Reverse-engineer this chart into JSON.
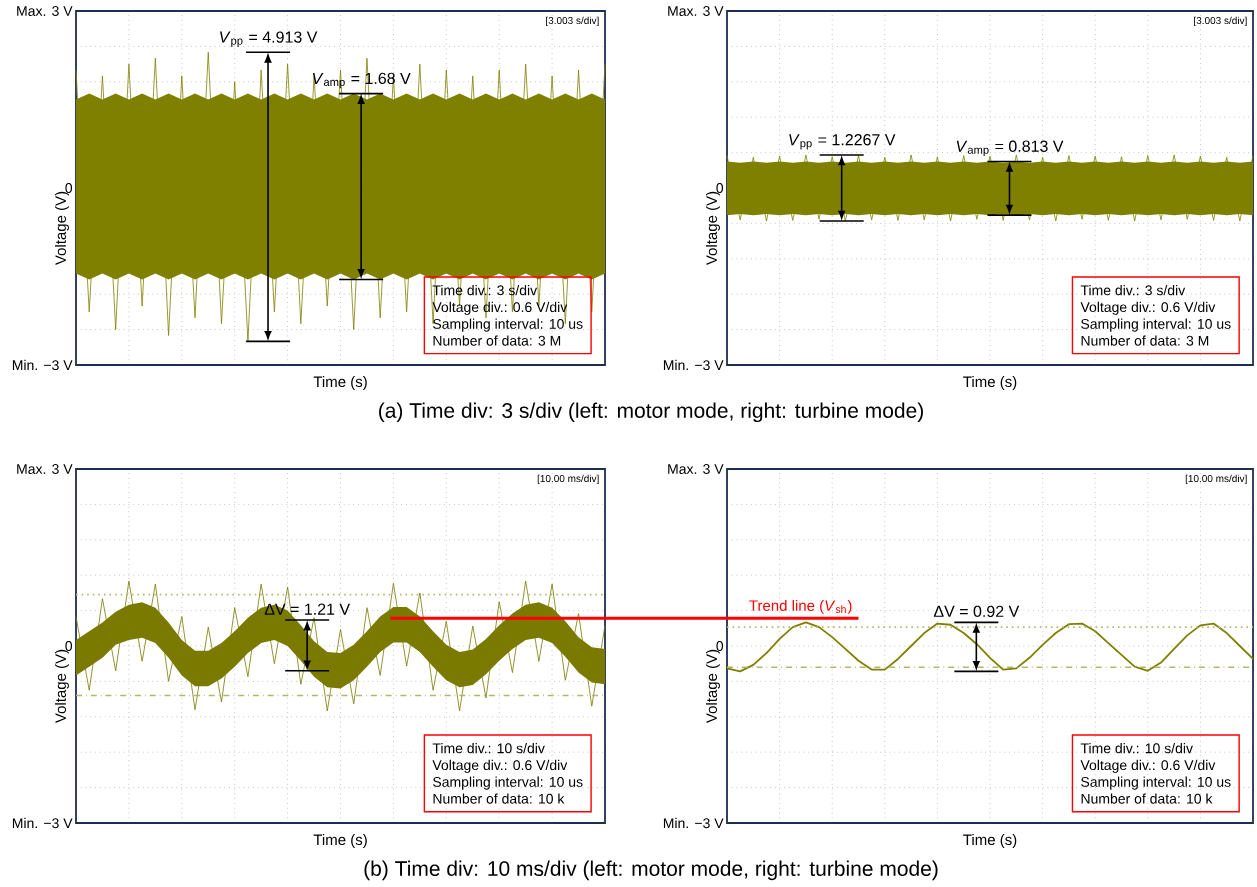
{
  "chart_data": [
    {
      "type": "line",
      "xlabel": "Time (s)",
      "ylabel": "Voltage (V)",
      "ylim": [
        -3,
        3
      ],
      "tick_labels": "y",
      "grid": true,
      "yticks": [
        {
          "value": -3,
          "label": "Min. −3 V"
        },
        {
          "value": -2.4,
          "label": null
        },
        {
          "value": -1.8,
          "label": null
        },
        {
          "value": -1.2,
          "label": null
        },
        {
          "value": -0.6,
          "label": null
        },
        {
          "value": 0,
          "label": "0"
        },
        {
          "value": 0.6,
          "label": null
        },
        {
          "value": 1.2,
          "label": null
        },
        {
          "value": 1.8,
          "label": null
        },
        {
          "value": 2.4,
          "label": null
        },
        {
          "value": 3,
          "label": "Max. 3 V"
        }
      ],
      "categories": [
        null,
        null,
        null,
        null,
        null,
        null,
        null,
        null,
        null,
        null,
        null,
        null,
        null,
        null,
        null,
        null,
        null,
        null,
        null,
        null,
        null,
        null,
        null,
        null,
        null,
        null,
        null,
        null,
        null,
        null,
        null,
        null,
        null,
        null,
        null,
        null,
        null,
        null,
        null,
        null,
        null
      ],
      "series": [
        {
          "color": "#808000",
          "values": [
            2.0,
            -2.1,
            1.9,
            -2.4,
            2.1,
            -2.0,
            2.2,
            -2.5,
            1.9,
            -2.2,
            2.3,
            -2.3,
            1.8,
            -2.6,
            2.0,
            -2.1,
            2.1,
            -2.3,
            1.9,
            -2.0,
            2.0,
            -2.4,
            2.2,
            -2.2,
            1.9,
            -2.1,
            2.1,
            -2.3,
            2.0,
            -2.0,
            1.9,
            -2.2,
            2.0,
            -2.1,
            2.1,
            -2.0,
            1.9,
            -2.3,
            2.0,
            -2.1,
            2.1
          ],
          "upper": [
            1.5,
            1.6,
            1.5,
            1.6,
            1.5,
            1.6,
            1.5,
            1.6,
            1.5,
            1.6,
            1.5,
            1.6,
            1.5,
            1.6,
            1.5,
            1.6,
            1.5,
            1.6,
            1.5,
            1.6,
            1.5,
            1.6,
            1.5,
            1.6,
            1.5,
            1.6,
            1.5,
            1.6,
            1.5,
            1.6,
            1.5,
            1.6,
            1.5,
            1.6,
            1.5,
            1.6,
            1.5,
            1.6,
            1.5,
            1.6,
            1.5
          ],
          "lower": [
            -1.45,
            -1.55,
            -1.45,
            -1.55,
            -1.45,
            -1.55,
            -1.45,
            -1.55,
            -1.45,
            -1.55,
            -1.45,
            -1.55,
            -1.45,
            -1.55,
            -1.45,
            -1.55,
            -1.45,
            -1.55,
            -1.45,
            -1.55,
            -1.45,
            -1.55,
            -1.45,
            -1.55,
            -1.45,
            -1.55,
            -1.45,
            -1.55,
            -1.45,
            -1.55,
            -1.45,
            -1.55,
            -1.45,
            -1.55,
            -1.45,
            -1.55,
            -1.45,
            -1.55,
            -1.45,
            -1.55,
            -1.45
          ]
        }
      ],
      "annotations": [
        "[3.003 s/div]",
        "Time div.: 3 s/div",
        "Voltage div.: 0.6 V/div",
        "Sampling interval: 10 us",
        "Number of data: 3 M",
        "*V*$_{pp}$ = 4.913 V",
        "*V*$_{amp}$ = 1.68 V",
        "(a) Time div: 3 s/div (left: motor mode, right: turbine mode)"
      ]
    },
    {
      "type": "line",
      "xlabel": "Time (s)",
      "ylabel": "Voltage (V)",
      "ylim": [
        -3,
        3
      ],
      "tick_labels": "y",
      "grid": true,
      "yticks": [
        {
          "value": -3,
          "label": "Min. −3 V"
        },
        {
          "value": -2.4,
          "label": null
        },
        {
          "value": -1.8,
          "label": null
        },
        {
          "value": -1.2,
          "label": null
        },
        {
          "value": -0.6,
          "label": null
        },
        {
          "value": 0,
          "label": "0"
        },
        {
          "value": 0.6,
          "label": null
        },
        {
          "value": 1.2,
          "label": null
        },
        {
          "value": 1.8,
          "label": null
        },
        {
          "value": 2.4,
          "label": null
        },
        {
          "value": 3,
          "label": "Max. 3 V"
        }
      ],
      "categories": [
        null,
        null,
        null,
        null,
        null,
        null,
        null,
        null,
        null,
        null,
        null,
        null,
        null,
        null,
        null,
        null,
        null,
        null,
        null,
        null,
        null,
        null,
        null,
        null,
        null,
        null,
        null,
        null,
        null,
        null,
        null,
        null,
        null,
        null,
        null,
        null,
        null,
        null,
        null,
        null,
        null
      ],
      "series": [
        {
          "color": "#808000",
          "values": [
            0.55,
            -0.54,
            0.52,
            -0.56,
            0.54,
            -0.55,
            0.56,
            -0.53,
            0.53,
            -0.56,
            0.55,
            -0.54,
            0.52,
            -0.55,
            0.56,
            -0.54,
            0.53,
            -0.56,
            0.55,
            -0.53,
            0.54,
            -0.55,
            0.56,
            -0.54,
            0.52,
            -0.56,
            0.55,
            -0.53,
            0.54,
            -0.55,
            0.53,
            -0.56,
            0.55,
            -0.54,
            0.56,
            -0.53,
            0.54,
            -0.55,
            0.52,
            -0.56,
            0.55
          ],
          "upper": [
            0.45,
            0.43,
            0.45,
            0.43,
            0.45,
            0.43,
            0.45,
            0.43,
            0.45,
            0.43,
            0.45,
            0.43,
            0.45,
            0.43,
            0.45,
            0.43,
            0.45,
            0.43,
            0.45,
            0.43,
            0.45,
            0.43,
            0.45,
            0.43,
            0.45,
            0.43,
            0.45,
            0.43,
            0.45,
            0.43,
            0.45,
            0.43,
            0.45,
            0.43,
            0.45,
            0.43,
            0.45,
            0.43,
            0.45,
            0.43,
            0.45
          ],
          "lower": [
            -0.46,
            -0.44,
            -0.46,
            -0.44,
            -0.46,
            -0.44,
            -0.46,
            -0.44,
            -0.46,
            -0.44,
            -0.46,
            -0.44,
            -0.46,
            -0.44,
            -0.46,
            -0.44,
            -0.46,
            -0.44,
            -0.46,
            -0.44,
            -0.46,
            -0.44,
            -0.46,
            -0.44,
            -0.46,
            -0.44,
            -0.46,
            -0.44,
            -0.46,
            -0.44,
            -0.46,
            -0.44,
            -0.46,
            -0.44,
            -0.46,
            -0.44,
            -0.46,
            -0.44,
            -0.46,
            -0.44,
            -0.46
          ]
        }
      ],
      "annotations": [
        "[3.003 s/div]",
        "Time div.: 3 s/div",
        "Voltage div.: 0.6 V/div",
        "Sampling interval: 10 us",
        "Number of data: 3 M",
        "*V*$_{pp}$ = 1.2267 V",
        "*V*$_{amp}$ = 0.813 V"
      ]
    },
    {
      "type": "line",
      "xlabel": "Time (s)",
      "ylabel": "Voltage (V)",
      "ylim": [
        -3,
        3
      ],
      "tick_labels": "y",
      "grid": true,
      "yticks": [
        {
          "value": -3,
          "label": "Min. −3 V"
        },
        {
          "value": -2.4,
          "label": null
        },
        {
          "value": -1.8,
          "label": null
        },
        {
          "value": -1.2,
          "label": null
        },
        {
          "value": -0.6,
          "label": null
        },
        {
          "value": 0,
          "label": "0"
        },
        {
          "value": 0.6,
          "label": null
        },
        {
          "value": 1.2,
          "label": null
        },
        {
          "value": 1.8,
          "label": null
        },
        {
          "value": 2.4,
          "label": null
        },
        {
          "value": 3,
          "label": "Max. 3 V"
        }
      ],
      "categories": [
        null,
        null,
        null,
        null,
        null,
        null,
        null,
        null,
        null,
        null,
        null,
        null,
        null,
        null,
        null,
        null,
        null,
        null,
        null,
        null,
        null,
        null,
        null,
        null,
        null,
        null,
        null,
        null,
        null,
        null,
        null,
        null,
        null,
        null,
        null,
        null,
        null,
        null,
        null,
        null,
        null
      ],
      "series": [
        {
          "color": "#7a7a00",
          "values": [
            0.5,
            -0.75,
            0.8,
            -0.42,
            1.1,
            -0.26,
            1.05,
            -0.6,
            0.5,
            -1.08,
            0.32,
            -0.95,
            0.65,
            -0.52,
            1.05,
            -0.3,
            1.0,
            -0.65,
            0.48,
            -1.1,
            0.28,
            -0.98,
            0.65,
            -0.5,
            1.06,
            -0.34,
            0.9,
            -0.75,
            0.42,
            -1.1,
            0.34,
            -0.88,
            0.75,
            -0.45,
            1.1,
            -0.26,
            1.05,
            -0.58,
            0.55,
            -1.02,
            0.35
          ],
          "upper": [
            0.1,
            0.25,
            0.4,
            0.58,
            0.7,
            0.74,
            0.65,
            0.4,
            0.1,
            -0.08,
            -0.08,
            0.05,
            0.25,
            0.48,
            0.65,
            0.7,
            0.6,
            0.35,
            0.08,
            -0.1,
            -0.12,
            0.02,
            0.25,
            0.5,
            0.66,
            0.66,
            0.5,
            0.25,
            0.02,
            -0.1,
            -0.06,
            0.12,
            0.35,
            0.55,
            0.7,
            0.74,
            0.65,
            0.42,
            0.15,
            -0.02,
            -0.05
          ],
          "lower": [
            -0.5,
            -0.35,
            -0.2,
            0.02,
            0.1,
            0.14,
            0.05,
            -0.2,
            -0.5,
            -0.68,
            -0.68,
            -0.55,
            -0.35,
            -0.12,
            0.05,
            0.1,
            0.0,
            -0.25,
            -0.52,
            -0.7,
            -0.72,
            -0.58,
            -0.35,
            -0.1,
            0.06,
            0.06,
            -0.1,
            -0.35,
            -0.58,
            -0.7,
            -0.66,
            -0.48,
            -0.25,
            -0.05,
            0.1,
            0.14,
            0.05,
            -0.18,
            -0.45,
            -0.62,
            -0.65
          ]
        }
      ],
      "ref_lines": [
        {
          "axis": "y",
          "value": 0.87,
          "color": "#b5b56a",
          "line_style": "dotted"
        },
        {
          "axis": "y",
          "value": -0.84,
          "color": "#b5b56a",
          "line_style": "dashed"
        }
      ],
      "annotations": [
        "[10.00 ms/div]",
        "Time div.: 10 s/div",
        "Voltage div.: 0.6 V/div",
        "Sampling interval: 10 us",
        "Number of data: 10 k",
        "ΔV = 1.21 V",
        "(b) Time div: 10 ms/div (left: motor mode, right: turbine mode)"
      ]
    },
    {
      "type": "line",
      "xlabel": "Time (s)",
      "ylabel": "Voltage (V)",
      "ylim": [
        -3,
        3
      ],
      "tick_labels": "y",
      "grid": true,
      "yticks": [
        {
          "value": -3,
          "label": "Min. −3 V"
        },
        {
          "value": -2.4,
          "label": null
        },
        {
          "value": -1.8,
          "label": null
        },
        {
          "value": -1.2,
          "label": null
        },
        {
          "value": -0.6,
          "label": null
        },
        {
          "value": 0,
          "label": "0"
        },
        {
          "value": 0.6,
          "label": null
        },
        {
          "value": 1.2,
          "label": null
        },
        {
          "value": 1.8,
          "label": null
        },
        {
          "value": 2.4,
          "label": null
        },
        {
          "value": 3,
          "label": "Max. 3 V"
        }
      ],
      "categories": [
        null,
        null,
        null,
        null,
        null,
        null,
        null,
        null,
        null,
        null,
        null,
        null,
        null,
        null,
        null,
        null,
        null,
        null,
        null,
        null,
        null,
        null,
        null,
        null,
        null,
        null,
        null,
        null,
        null,
        null,
        null,
        null,
        null,
        null,
        null,
        null,
        null,
        null,
        null,
        null,
        null
      ],
      "series": [
        {
          "color": "#808000",
          "values": [
            -0.38,
            -0.43,
            -0.32,
            -0.12,
            0.12,
            0.32,
            0.4,
            0.32,
            0.15,
            -0.05,
            -0.25,
            -0.4,
            -0.4,
            -0.22,
            0.0,
            0.22,
            0.38,
            0.36,
            0.22,
            0.03,
            -0.2,
            -0.4,
            -0.38,
            -0.2,
            0.02,
            0.22,
            0.37,
            0.38,
            0.25,
            0.05,
            -0.15,
            -0.35,
            -0.42,
            -0.28,
            -0.05,
            0.18,
            0.35,
            0.38,
            0.22,
            0.0,
            -0.22
          ]
        }
      ],
      "ref_lines": [
        {
          "axis": "y",
          "value": 0.32,
          "color": "#b5b56a",
          "line_style": "dotted"
        },
        {
          "axis": "y",
          "value": -0.36,
          "color": "#b5b56a",
          "line_style": "dashed"
        },
        {
          "axis": "y",
          "value": 0.47,
          "color": "#ff0000",
          "label": "Trend line (*V*$_{sh}$)"
        }
      ],
      "annotations": [
        "[10.00 ms/div]",
        "Time div.: 10 s/div",
        "Voltage div.: 0.6 V/div",
        "Sampling interval: 10 us",
        "Number of data: 10 k",
        "ΔV = 0.92 V"
      ]
    }
  ]
}
